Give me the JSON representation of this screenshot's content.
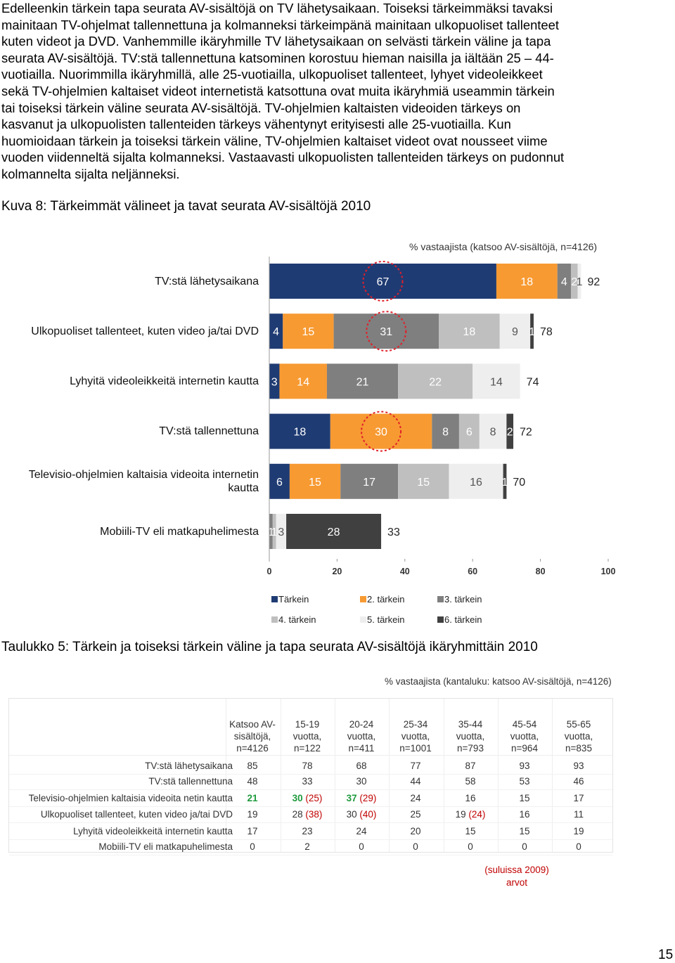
{
  "body": {
    "lines": [
      "Edelleenkin tärkein tapa seurata AV-sisältöjä on TV lähetysaikaan. Toiseksi tärkeimmäksi tavaksi",
      "mainitaan TV-ohjelmat tallennettuna ja kolmanneksi tärkeimpänä mainitaan ulkopuoliset tallenteet",
      "kuten videot ja DVD. Vanhemmille ikäryhmille TV lähetysaikaan on selvästi tärkein väline ja tapa",
      "seurata AV-sisältöjä. TV:stä tallennettuna katsominen korostuu hieman naisilla ja iältään 25 – 44-",
      "vuotiailla. Nuorimmilla ikäryhmillä, alle 25-vuotiailla, ulkopuoliset tallenteet, lyhyet videoleikkeet",
      "sekä TV-ohjelmien kaltaiset videot internetistä katsottuna ovat muita ikäryhmiä useammin tärkein",
      "tai toiseksi tärkein väline seurata AV-sisältöjä. TV-ohjelmien kaltaisten videoiden tärkeys on",
      "kasvanut ja ulkopuolisten tallenteiden tärkeys vähentynyt erityisesti alle 25-vuotiailla. Kun",
      "huomioidaan tärkein ja toiseksi tärkein väline, TV-ohjelmien kaltaiset videot ovat nousseet viime",
      "vuoden viidenneltä sijalta kolmanneksi. Vastaavasti ulkopuolisten tallenteiden tärkeys on pudonnut",
      "kolmannelta sijalta neljänneksi."
    ]
  },
  "figure_caption": "Kuva 8: Tärkeimmät välineet ja tavat seurata AV-sisältöjä 2010",
  "chart_data": {
    "type": "bar",
    "orientation": "horizontal",
    "stacked": true,
    "subtitle": "% vastaajista (katsoo AV-sisältöjä, n=4126)",
    "categories": [
      "TV:stä lähetysaikana",
      "Ulkopuoliset tallenteet, kuten video ja/tai DVD",
      "Lyhyitä videoleikkeitä internetin kautta",
      "TV:stä tallennettuna",
      "Televisio-ohjelmien kaltaisia videoita internetin kautta",
      "Mobiili-TV eli matkapuhelimesta"
    ],
    "series": [
      {
        "name": "Tärkein",
        "color": "#1f3b73",
        "label_color": "#ffffff",
        "values": [
          67,
          4,
          3,
          18,
          6,
          null
        ]
      },
      {
        "name": "2. tärkein",
        "color": "#f79a32",
        "label_color": "#ffffff",
        "values": [
          18,
          15,
          14,
          30,
          15,
          null
        ]
      },
      {
        "name": "3. tärkein",
        "color": "#7f7f7f",
        "label_color": "#ffffff",
        "values": [
          4,
          31,
          21,
          8,
          17,
          1
        ]
      },
      {
        "name": "4. tärkein",
        "color": "#bfbfbf",
        "label_color": "#ffffff",
        "values": [
          2,
          18,
          22,
          6,
          15,
          1
        ]
      },
      {
        "name": "5. tärkein",
        "color": "#eeeeee",
        "label_color": "#555555",
        "values": [
          1,
          9,
          14,
          8,
          16,
          3
        ]
      },
      {
        "name": "6. tärkein",
        "color": "#404040",
        "label_color": "#ffffff",
        "values": [
          null,
          1,
          null,
          2,
          1,
          28
        ]
      }
    ],
    "totals": [
      92,
      78,
      74,
      72,
      70,
      33
    ],
    "xlim": [
      0,
      100
    ],
    "xticks": [
      0,
      20,
      40,
      60,
      80,
      100
    ],
    "legend": "bottom"
  },
  "table_caption": "Taulukko 5: Tärkein ja toiseksi tärkein väline ja tapa seurata AV-sisältöjä ikäryhmittäin 2010",
  "table": {
    "subtitle": "% vastaajista (kantaluku: katsoo AV-sisältöjä, n=4126)",
    "columns": [
      "Katsoo AV-sisältöjä, n=4126",
      "15-19 vuotta, n=122",
      "20-24 vuotta, n=411",
      "25-34 vuotta, n=1001",
      "35-44 vuotta, n=793",
      "45-54 vuotta, n=964",
      "55-65 vuotta, n=835"
    ],
    "rows": [
      {
        "label": "TV:stä lähetysaikana",
        "cells": [
          "85",
          "78",
          "68",
          "77",
          "87",
          "93",
          "93"
        ]
      },
      {
        "label": "TV:stä tallennettuna",
        "cells": [
          "48",
          "33",
          "30",
          "44",
          "58",
          "53",
          "46"
        ]
      },
      {
        "label": "Televisio-ohjelmien kaltaisia videoita netin kautta",
        "cells": [
          {
            "text": "21",
            "color": "#1e9a3c"
          },
          {
            "text": "30",
            "note": "(25)",
            "color": "#1e9a3c"
          },
          {
            "text": "37",
            "note": "(29)",
            "color": "#1e9a3c"
          },
          "24",
          "16",
          "15",
          "17"
        ]
      },
      {
        "label": "Ulkopuoliset tallenteet, kuten video ja/tai DVD",
        "cells": [
          "19",
          {
            "text": "28",
            "note": "(38)"
          },
          {
            "text": "30",
            "note": "(40)"
          },
          "25",
          {
            "text": "19",
            "note": "(24)"
          },
          "16",
          "11"
        ]
      },
      {
        "label": "Lyhyitä videoleikkeitä internetin kautta",
        "cells": [
          "17",
          "23",
          "24",
          "20",
          "15",
          "15",
          "19"
        ]
      },
      {
        "label": "Mobiili-TV eli matkapuhelimesta",
        "cells": [
          "0",
          "2",
          "0",
          "0",
          "0",
          "0",
          "0"
        ]
      }
    ],
    "note": "(suluissa 2009) arvot",
    "note_color": "#c00000"
  },
  "page_number": "15"
}
